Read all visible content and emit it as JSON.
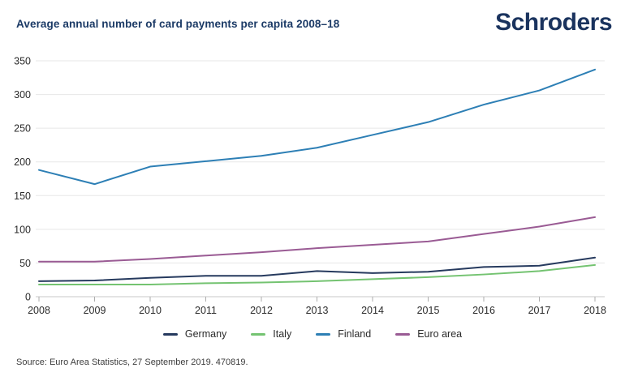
{
  "header": {
    "title": "Average annual number of card payments per capita 2008–18",
    "logo": "Schroders"
  },
  "colors": {
    "title_navy": "#1b3a66",
    "logo_navy": "#1a335e",
    "gridline": "#e7e7e7",
    "axis": "#c9c9c9",
    "tick_label": "#2b2b2b"
  },
  "chart_data": {
    "type": "line",
    "title": "Average annual number of card payments per capita 2008–18",
    "x": [
      2008,
      2009,
      2010,
      2011,
      2012,
      2013,
      2014,
      2015,
      2016,
      2017,
      2018
    ],
    "series": [
      {
        "name": "Germany",
        "color": "#263a5e",
        "values": [
          23,
          24,
          28,
          31,
          31,
          38,
          35,
          37,
          44,
          46,
          58
        ]
      },
      {
        "name": "Italy",
        "color": "#74c371",
        "values": [
          18,
          18,
          18,
          20,
          21,
          23,
          26,
          29,
          33,
          38,
          47
        ]
      },
      {
        "name": "Finland",
        "color": "#2d7fb5",
        "values": [
          188,
          167,
          193,
          201,
          209,
          221,
          240,
          259,
          285,
          306,
          337
        ]
      },
      {
        "name": "Euro area",
        "color": "#9a5b94",
        "values": [
          52,
          52,
          56,
          61,
          66,
          72,
          77,
          82,
          93,
          104,
          118
        ]
      }
    ],
    "xlabel": "",
    "ylabel": "",
    "ylim": [
      0,
      350
    ],
    "ytick_step": 50,
    "yticks": [
      0,
      50,
      100,
      150,
      200,
      250,
      300,
      350
    ],
    "grid": "horizontal",
    "legend_position": "bottom"
  },
  "footer": {
    "source": "Source: Euro Area Statistics, 27 September 2019. 470819."
  }
}
